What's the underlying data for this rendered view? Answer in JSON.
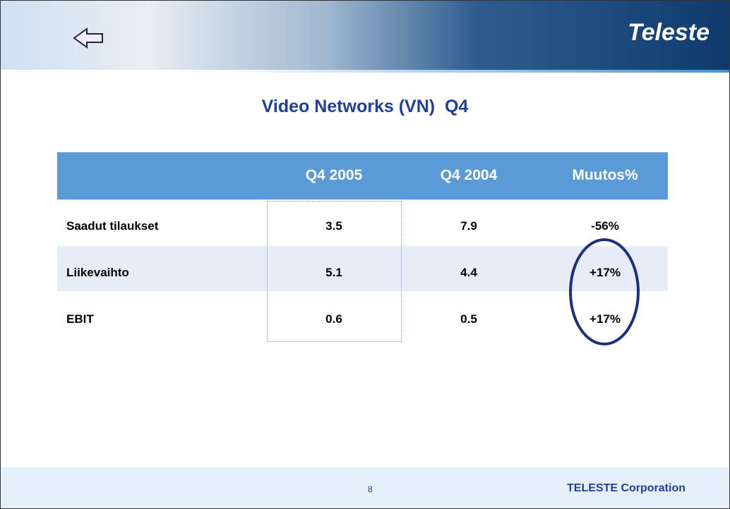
{
  "header": {
    "logo": "Teleste"
  },
  "title": "Video Networks (VN)  Q4",
  "table": {
    "columns": [
      "",
      "Q4 2005",
      "Q4 2004",
      "Muutos%"
    ],
    "rows": [
      [
        "Saadut tilaukset",
        "3.5",
        "7.9",
        "-56%"
      ],
      [
        "Liikevaihto",
        "5.1",
        "4.4",
        "+17%"
      ],
      [
        "EBIT",
        "0.6",
        "0.5",
        "+17%"
      ]
    ]
  },
  "footer": {
    "page": "8",
    "company": "TELESTE Corporation"
  }
}
